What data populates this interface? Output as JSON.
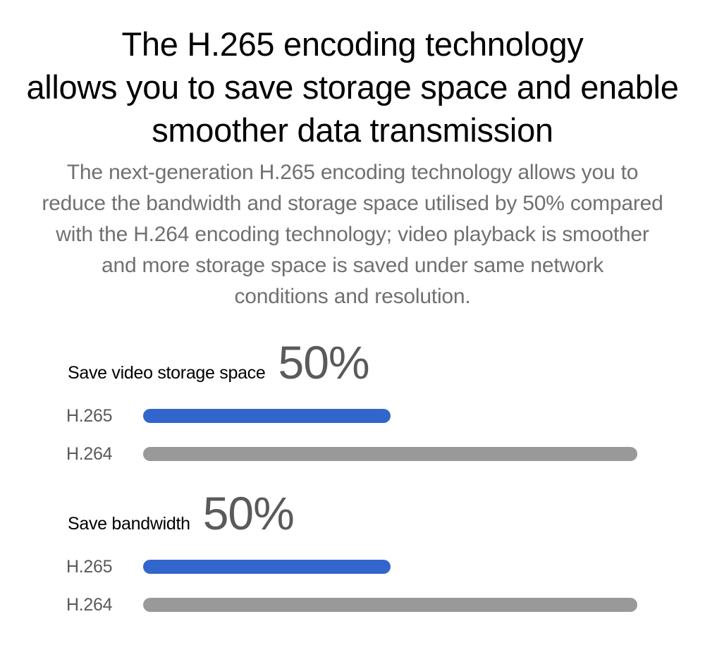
{
  "header": {
    "title_lines": [
      "The H.265 encoding technology",
      "allows you to save storage space and enable",
      "smoother data transmission"
    ],
    "subtitle_lines": [
      "The next-generation H.265 encoding technology allows you to",
      "reduce the bandwidth and storage space utilised by 50% compared",
      "with the H.264 encoding technology; video playback is smoother",
      "and more storage space is saved under same network",
      "conditions and resolution."
    ]
  },
  "colors": {
    "h265_bar": "#3366cc",
    "h264_bar": "#999999",
    "percent_text": "#5a5a5a",
    "body_text": "#707070"
  },
  "chart_data": [
    {
      "type": "bar",
      "orientation": "horizontal",
      "title": "Save video storage space",
      "headline": "50%",
      "categories": [
        "H.265",
        "H.264"
      ],
      "values": [
        50,
        100
      ],
      "xlim": [
        0,
        100
      ],
      "grid": false,
      "legend": "none"
    },
    {
      "type": "bar",
      "orientation": "horizontal",
      "title": "Save bandwidth",
      "headline": "50%",
      "categories": [
        "H.265",
        "H.264"
      ],
      "values": [
        50,
        100
      ],
      "xlim": [
        0,
        100
      ],
      "grid": false,
      "legend": "none"
    }
  ]
}
